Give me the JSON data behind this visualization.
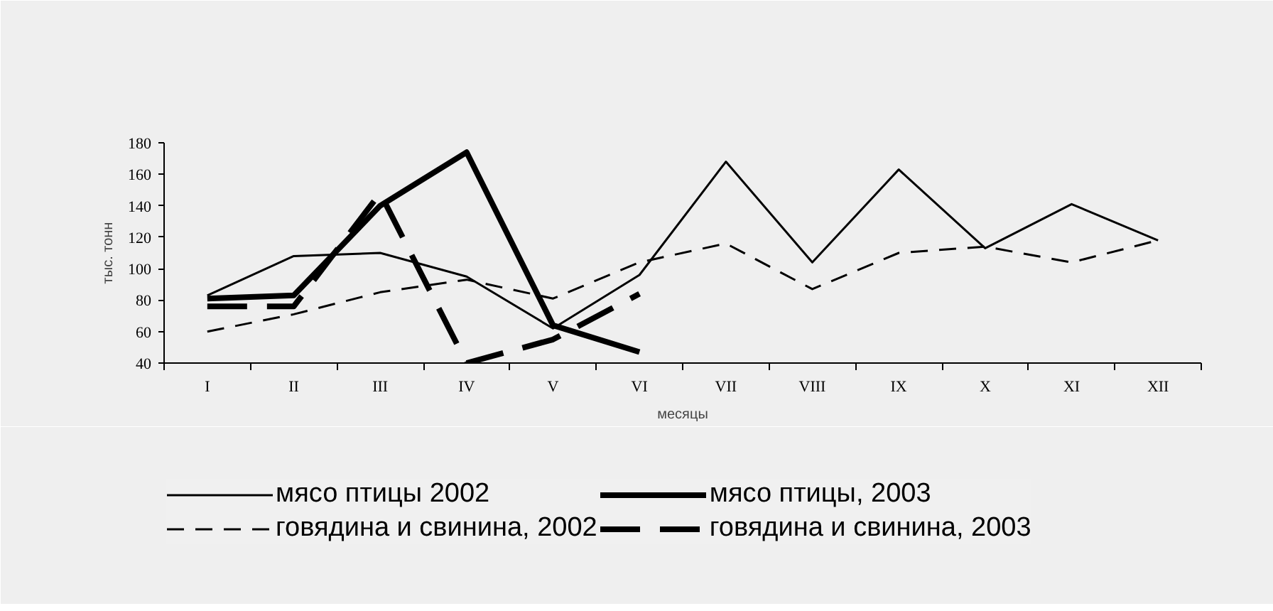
{
  "chart_data": {
    "type": "line",
    "xlabel": "месяцы",
    "ylabel": "тыс. тонн",
    "categories": [
      "I",
      "II",
      "III",
      "IV",
      "V",
      "VI",
      "VII",
      "VIII",
      "IX",
      "X",
      "XI",
      "XII"
    ],
    "ylim": [
      40,
      180
    ],
    "yticks": [
      40,
      60,
      80,
      100,
      120,
      140,
      160,
      180
    ],
    "grid": false,
    "legend": "bottom",
    "series": [
      {
        "name": "мясо птицы 2002",
        "color": "#000000",
        "line_style": "solid",
        "values": [
          83,
          108,
          110,
          95,
          62,
          96,
          168,
          104,
          163,
          113,
          141,
          118
        ]
      },
      {
        "name": "мясо птицы, 2003",
        "color": "#000000",
        "line_style": "solid",
        "values": [
          81,
          83,
          140,
          174,
          64,
          47,
          null,
          null,
          null,
          null,
          null,
          null
        ]
      },
      {
        "name": "говядина и свинина, 2002",
        "color": "#000000",
        "line_style": "dashed",
        "values": [
          60,
          71,
          85,
          93,
          81,
          104,
          116,
          87,
          110,
          114,
          104,
          118
        ]
      },
      {
        "name": "говядина и свинина, 2003",
        "color": "#000000",
        "line_style": "dashed",
        "values": [
          76,
          76,
          148,
          40,
          55,
          84,
          null,
          null,
          null,
          null,
          null,
          null
        ]
      }
    ]
  }
}
